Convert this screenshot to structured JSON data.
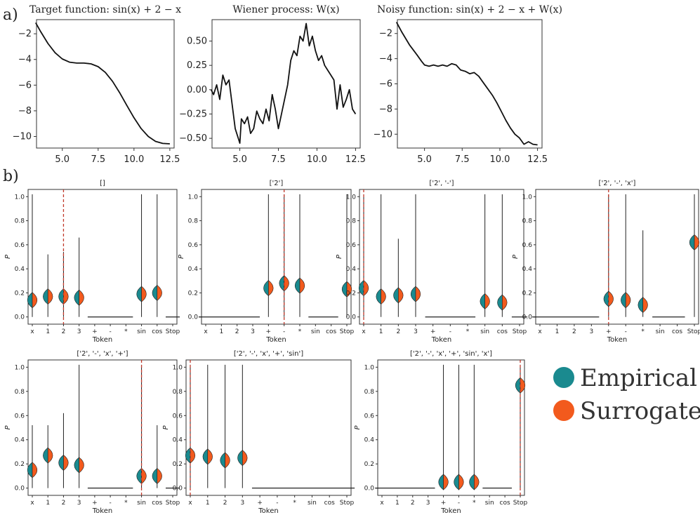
{
  "panel_labels": {
    "a": "a)",
    "b": "b)"
  },
  "legend": {
    "entries": [
      {
        "name": "Empirical",
        "color": "#1a8a8f"
      },
      {
        "name": "Surrogate",
        "color": "#f25a1d"
      }
    ]
  },
  "chart_data": [
    {
      "id": "target",
      "type": "line",
      "title": "Target function: sin(x) + 2 − x",
      "xlim": [
        3.2,
        12.8
      ],
      "ylim": [
        -10.9,
        -0.9
      ],
      "xticks": [
        5.0,
        7.5,
        10.0,
        12.5
      ],
      "xtick_labels": [
        "5.0",
        "7.5",
        "10.0",
        "12.5"
      ],
      "yticks": [
        -10,
        -8,
        -6,
        -4,
        -2
      ],
      "ytick_labels": [
        "−10",
        "−8",
        "−6",
        "−4",
        "−2"
      ],
      "x": [
        3.14,
        3.5,
        4.0,
        4.5,
        5.0,
        5.5,
        6.0,
        6.28,
        6.5,
        7.0,
        7.5,
        8.0,
        8.5,
        9.0,
        9.5,
        10.0,
        10.5,
        11.0,
        11.5,
        12.0,
        12.5
      ],
      "y": [
        -1.14,
        -1.85,
        -2.76,
        -3.48,
        -3.96,
        -4.21,
        -4.28,
        -4.28,
        -4.28,
        -4.34,
        -4.56,
        -5.01,
        -5.7,
        -6.59,
        -7.58,
        -8.54,
        -9.38,
        -10.0,
        -10.38,
        -10.54,
        -10.57
      ]
    },
    {
      "id": "wiener",
      "type": "line",
      "title": "Wiener process: W(x)",
      "xlim": [
        3.2,
        12.8
      ],
      "ylim": [
        -0.6,
        0.72
      ],
      "xticks": [
        5.0,
        7.5,
        10.0,
        12.5
      ],
      "xtick_labels": [
        "5.0",
        "7.5",
        "10.0",
        "12.5"
      ],
      "yticks": [
        -0.5,
        -0.25,
        0.0,
        0.25,
        0.5
      ],
      "ytick_labels": [
        "−0.50",
        "−0.25",
        "0.00",
        "0.25",
        "0.50"
      ],
      "x": [
        3.14,
        3.3,
        3.5,
        3.7,
        3.9,
        4.1,
        4.3,
        4.5,
        4.7,
        4.9,
        5.0,
        5.1,
        5.3,
        5.5,
        5.7,
        5.9,
        6.1,
        6.3,
        6.5,
        6.7,
        6.9,
        7.1,
        7.3,
        7.5,
        7.7,
        7.9,
        8.1,
        8.3,
        8.5,
        8.7,
        8.9,
        9.1,
        9.3,
        9.5,
        9.7,
        9.9,
        10.1,
        10.3,
        10.5,
        10.7,
        10.9,
        11.1,
        11.3,
        11.5,
        11.7,
        11.9,
        12.1,
        12.3,
        12.5
      ],
      "y": [
        0.0,
        -0.05,
        0.05,
        -0.1,
        0.15,
        0.05,
        0.1,
        -0.15,
        -0.4,
        -0.5,
        -0.55,
        -0.3,
        -0.35,
        -0.28,
        -0.45,
        -0.4,
        -0.22,
        -0.3,
        -0.35,
        -0.2,
        -0.32,
        -0.05,
        -0.2,
        -0.4,
        -0.25,
        -0.1,
        0.05,
        0.3,
        0.4,
        0.35,
        0.55,
        0.5,
        0.68,
        0.45,
        0.55,
        0.4,
        0.3,
        0.35,
        0.25,
        0.2,
        0.15,
        0.1,
        -0.2,
        0.05,
        -0.18,
        -0.1,
        0.0,
        -0.2,
        -0.25
      ]
    },
    {
      "id": "noisy",
      "type": "line",
      "title": "Noisy function: sin(x) + 2 − x + W(x)",
      "xlim": [
        3.2,
        12.8
      ],
      "ylim": [
        -11.1,
        -0.9
      ],
      "xticks": [
        5.0,
        7.5,
        10.0,
        12.5
      ],
      "xtick_labels": [
        "5.0",
        "7.5",
        "10.0",
        "12.5"
      ],
      "yticks": [
        -10,
        -8,
        -6,
        -4,
        -2
      ],
      "ytick_labels": [
        "−10",
        "−8",
        "−6",
        "−4",
        "−2"
      ],
      "x": [
        3.14,
        3.5,
        4.0,
        4.5,
        4.8,
        5.0,
        5.3,
        5.6,
        5.9,
        6.2,
        6.5,
        6.8,
        7.1,
        7.4,
        7.7,
        8.0,
        8.3,
        8.6,
        8.9,
        9.2,
        9.5,
        9.8,
        10.1,
        10.4,
        10.7,
        11.0,
        11.3,
        11.6,
        11.9,
        12.2,
        12.5
      ],
      "y": [
        -1.1,
        -1.9,
        -2.9,
        -3.7,
        -4.2,
        -4.5,
        -4.6,
        -4.5,
        -4.6,
        -4.5,
        -4.6,
        -4.4,
        -4.5,
        -4.9,
        -5.0,
        -5.2,
        -5.1,
        -5.4,
        -5.9,
        -6.4,
        -6.9,
        -7.5,
        -8.2,
        -8.9,
        -9.5,
        -10.0,
        -10.3,
        -10.8,
        -10.6,
        -10.8,
        -10.85
      ]
    },
    {
      "id": "violin-0",
      "type": "violin",
      "title": "[]",
      "categories": [
        "x",
        "1",
        "2",
        "3",
        "+",
        "-",
        "*",
        "sin",
        "cos",
        "Stop"
      ],
      "xlabel": "Token",
      "ylabel": "P",
      "ylim": [
        0,
        1.0
      ],
      "yticks": [
        0.0,
        0.2,
        0.4,
        0.6,
        0.8,
        1.0
      ],
      "ytick_labels": [
        "0.0",
        "0.2",
        "0.4",
        "0.6",
        "0.8",
        "1.0"
      ],
      "selected": "2",
      "values": [
        0.14,
        0.17,
        0.17,
        0.16,
        0.0,
        0.0,
        0.0,
        0.19,
        0.2,
        0.0
      ],
      "max": [
        1.02,
        0.52,
        0.54,
        0.66,
        0.0,
        0.0,
        0.0,
        1.02,
        1.02,
        0.0
      ]
    },
    {
      "id": "violin-1",
      "type": "violin",
      "title": "['2']",
      "categories": [
        "x",
        "1",
        "2",
        "3",
        "+",
        "-",
        "*",
        "sin",
        "cos",
        "Stop"
      ],
      "xlabel": "Token",
      "ylabel": "P",
      "ylim": [
        0,
        1.0
      ],
      "yticks": [
        0.0,
        0.2,
        0.4,
        0.6,
        0.8,
        1.0
      ],
      "ytick_labels": [
        "0.0",
        "0.2",
        "0.4",
        "0.6",
        "0.8",
        "1.0"
      ],
      "selected": "-",
      "values": [
        0.0,
        0.0,
        0.0,
        0.0,
        0.24,
        0.28,
        0.26,
        0.0,
        0.0,
        0.23
      ],
      "max": [
        0.0,
        0.0,
        0.0,
        0.0,
        1.02,
        1.02,
        1.02,
        0.0,
        0.0,
        1.02
      ]
    },
    {
      "id": "violin-2",
      "type": "violin",
      "title": "['2', '-']",
      "categories": [
        "x",
        "1",
        "2",
        "3",
        "+",
        "-",
        "*",
        "sin",
        "cos",
        "Stop"
      ],
      "xlabel": "Token",
      "ylabel": "P",
      "ylim": [
        0,
        1.0
      ],
      "yticks": [
        0.0,
        0.2,
        0.4,
        0.6,
        0.8,
        1.0
      ],
      "ytick_labels": [
        "0.0",
        "0.2",
        "0.4",
        "0.6",
        "0.8",
        "1.0"
      ],
      "selected": "x",
      "values": [
        0.24,
        0.17,
        0.18,
        0.19,
        0.0,
        0.0,
        0.0,
        0.13,
        0.12,
        0.0
      ],
      "max": [
        1.02,
        1.02,
        0.65,
        1.02,
        0.0,
        0.0,
        0.0,
        1.02,
        1.02,
        0.0
      ]
    },
    {
      "id": "violin-3",
      "type": "violin",
      "title": "['2', '-', 'x']",
      "categories": [
        "x",
        "1",
        "2",
        "3",
        "+",
        "-",
        "*",
        "sin",
        "cos",
        "Stop"
      ],
      "xlabel": "Token",
      "ylabel": "P",
      "ylim": [
        0,
        1.0
      ],
      "yticks": [
        0.0,
        0.2,
        0.4,
        0.6,
        0.8,
        1.0
      ],
      "ytick_labels": [
        "0.0",
        "0.2",
        "0.4",
        "0.6",
        "0.8",
        "1.0"
      ],
      "selected": "+",
      "values": [
        0.0,
        0.0,
        0.0,
        0.0,
        0.15,
        0.14,
        0.1,
        0.0,
        0.0,
        0.62
      ],
      "max": [
        0.0,
        0.0,
        0.0,
        0.0,
        1.02,
        1.02,
        0.72,
        0.0,
        0.0,
        1.02
      ]
    },
    {
      "id": "violin-4",
      "type": "violin",
      "title": "['2', '-', 'x', '+']",
      "categories": [
        "x",
        "1",
        "2",
        "3",
        "+",
        "-",
        "*",
        "sin",
        "cos",
        "Stop"
      ],
      "xlabel": "Token",
      "ylabel": "P",
      "ylim": [
        0,
        1.0
      ],
      "yticks": [
        0.0,
        0.2,
        0.4,
        0.6,
        0.8,
        1.0
      ],
      "ytick_labels": [
        "0.0",
        "0.2",
        "0.4",
        "0.6",
        "0.8",
        "1.0"
      ],
      "selected": "sin",
      "values": [
        0.15,
        0.27,
        0.21,
        0.19,
        0.0,
        0.0,
        0.0,
        0.1,
        0.1,
        0.0
      ],
      "max": [
        0.52,
        0.52,
        0.62,
        1.02,
        0.0,
        0.0,
        0.0,
        1.02,
        0.52,
        0.0
      ]
    },
    {
      "id": "violin-5",
      "type": "violin",
      "title": "['2', '-', 'x', '+', 'sin']",
      "categories": [
        "x",
        "1",
        "2",
        "3",
        "+",
        "-",
        "*",
        "sin",
        "cos",
        "Stop"
      ],
      "xlabel": "Token",
      "ylabel": "P",
      "ylim": [
        0,
        1.0
      ],
      "yticks": [
        0.0,
        0.2,
        0.4,
        0.6,
        0.8,
        1.0
      ],
      "ytick_labels": [
        "0.0",
        "0.2",
        "0.4",
        "0.6",
        "0.8",
        "1.0"
      ],
      "selected": "x",
      "values": [
        0.27,
        0.26,
        0.23,
        0.25,
        0.0,
        0.0,
        0.0,
        0.0,
        0.0,
        0.0
      ],
      "max": [
        1.02,
        1.02,
        1.02,
        1.02,
        0.0,
        0.0,
        0.0,
        0.0,
        0.0,
        0.0
      ]
    },
    {
      "id": "violin-6",
      "type": "violin",
      "title": "['2', '-', 'x', '+', 'sin', 'x']",
      "categories": [
        "x",
        "1",
        "2",
        "3",
        "+",
        "-",
        "*",
        "sin",
        "cos",
        "Stop"
      ],
      "xlabel": "Token",
      "ylabel": "P",
      "ylim": [
        0,
        1.0
      ],
      "yticks": [
        0.0,
        0.2,
        0.4,
        0.6,
        0.8,
        1.0
      ],
      "ytick_labels": [
        "0.0",
        "0.2",
        "0.4",
        "0.6",
        "0.8",
        "1.0"
      ],
      "selected": "Stop",
      "values": [
        0.0,
        0.0,
        0.0,
        0.0,
        0.05,
        0.05,
        0.05,
        0.0,
        0.0,
        0.85
      ],
      "max": [
        0.0,
        0.0,
        0.0,
        0.0,
        1.02,
        1.02,
        1.02,
        0.0,
        0.0,
        1.02
      ]
    }
  ]
}
